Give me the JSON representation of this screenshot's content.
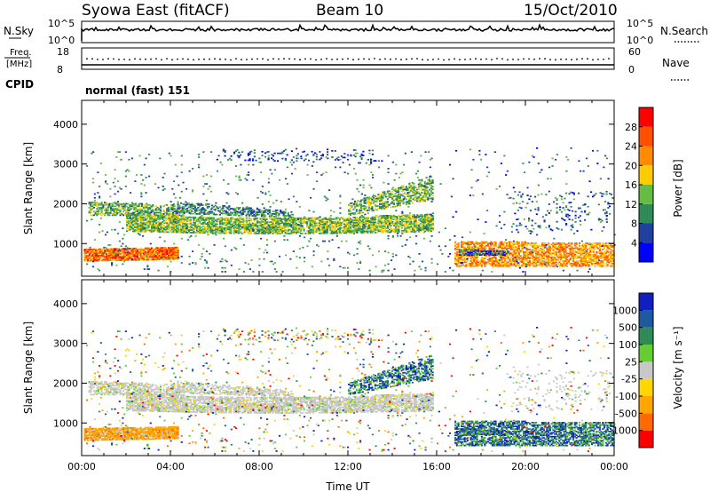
{
  "header": {
    "title": "Syowa East (fitACF)",
    "beam": "Beam 10",
    "date": "15/Oct/2010"
  },
  "top_panels": {
    "nsky_label": "N.Sky",
    "nsearch_label": "N.Search",
    "nsky_ticks": [
      "10^5",
      "10^0"
    ],
    "freq_label_1": "Freq.",
    "freq_label_2": "[MHz]",
    "freq_ticks": [
      "18",
      "8"
    ],
    "nave_ticks": [
      "60",
      "0"
    ],
    "nave_label": "Nave",
    "cpid_label": "CPID",
    "cpid_value": "normal (fast) 151"
  },
  "colors": {
    "power": [
      "#0000ff",
      "#2040a0",
      "#2e8b57",
      "#66bb44",
      "#ffcc00",
      "#ff8c00",
      "#ff5000",
      "#ff0000"
    ],
    "velocity": [
      "#ff0000",
      "#ff6a00",
      "#ffa500",
      "#ffd700",
      "#c8c8c8",
      "#66cc33",
      "#2e8b57",
      "#1e5aa0",
      "#1020c0"
    ]
  },
  "chart_data": [
    {
      "type": "heatmap",
      "name": "power",
      "xlabel": "",
      "ylabel": "Slant Range [km]",
      "xlim": [
        "00:00",
        "24:00"
      ],
      "ylim": [
        180,
        4600
      ],
      "yticks": [
        1000,
        2000,
        3000,
        4000
      ],
      "colorbar": {
        "label": "Power [dB]",
        "ticks": [
          4,
          8,
          12,
          16,
          20,
          24,
          28
        ],
        "range": [
          0,
          32
        ]
      }
    },
    {
      "type": "heatmap",
      "name": "velocity",
      "xlabel": "Time UT",
      "ylabel": "Slant Range [km]",
      "xlim": [
        "00:00",
        "24:00"
      ],
      "ylim": [
        180,
        4600
      ],
      "xticks": [
        "00:00",
        "04:00",
        "08:00",
        "12:00",
        "16:00",
        "20:00",
        "00:00"
      ],
      "yticks": [
        1000,
        2000,
        3000,
        4000
      ],
      "colorbar": {
        "label": "Velocity [m s⁻¹]",
        "ticks": [
          "-1000",
          "-500",
          "-100",
          "-25",
          "25",
          "100",
          "500",
          "1000"
        ]
      }
    }
  ]
}
